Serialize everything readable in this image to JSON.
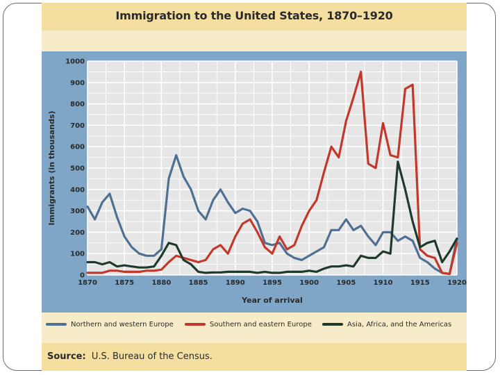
{
  "chart_data": {
    "type": "line",
    "title": "Immigration to the United States, 1870–1920",
    "xlabel": "Year of arrival",
    "ylabel": "Immigrants (in thousands)",
    "xlim": [
      1870,
      1920
    ],
    "ylim": [
      0,
      1000
    ],
    "x_ticks": [
      1870,
      1875,
      1880,
      1885,
      1890,
      1895,
      1900,
      1905,
      1910,
      1915,
      1920
    ],
    "y_ticks": [
      0,
      100,
      200,
      300,
      400,
      500,
      600,
      700,
      800,
      900,
      1000
    ],
    "grid": true,
    "legend_position": "bottom",
    "x": [
      1870,
      1871,
      1872,
      1873,
      1874,
      1875,
      1876,
      1877,
      1878,
      1879,
      1880,
      1881,
      1882,
      1883,
      1884,
      1885,
      1886,
      1887,
      1888,
      1889,
      1890,
      1891,
      1892,
      1893,
      1894,
      1895,
      1896,
      1897,
      1898,
      1899,
      1900,
      1901,
      1902,
      1903,
      1904,
      1905,
      1906,
      1907,
      1908,
      1909,
      1910,
      1911,
      1912,
      1913,
      1914,
      1915,
      1916,
      1917,
      1918,
      1919,
      1920
    ],
    "series": [
      {
        "name": "Northern and western Europe",
        "color": "#4f6f93",
        "values": [
          320,
          260,
          340,
          380,
          270,
          180,
          130,
          100,
          90,
          90,
          120,
          450,
          560,
          460,
          400,
          300,
          260,
          350,
          400,
          340,
          290,
          310,
          300,
          250,
          150,
          140,
          150,
          100,
          80,
          70,
          90,
          110,
          130,
          210,
          210,
          260,
          210,
          230,
          180,
          140,
          200,
          200,
          160,
          180,
          160,
          80,
          60,
          30,
          10,
          5,
          170
        ]
      },
      {
        "name": "Southern and eastern Europe",
        "color": "#c2382b",
        "values": [
          10,
          10,
          10,
          20,
          20,
          15,
          15,
          15,
          20,
          20,
          25,
          60,
          90,
          80,
          70,
          60,
          70,
          120,
          140,
          100,
          180,
          240,
          260,
          200,
          130,
          100,
          180,
          120,
          140,
          230,
          300,
          350,
          480,
          600,
          550,
          720,
          830,
          950,
          520,
          500,
          710,
          560,
          550,
          870,
          890,
          120,
          90,
          80,
          10,
          5,
          150
        ]
      },
      {
        "name": "Asia, Africa, and the Americas",
        "color": "#1f3a2a",
        "values": [
          60,
          60,
          50,
          60,
          40,
          45,
          40,
          35,
          35,
          40,
          90,
          150,
          140,
          70,
          50,
          15,
          10,
          12,
          12,
          15,
          15,
          15,
          15,
          10,
          15,
          10,
          10,
          15,
          15,
          15,
          20,
          15,
          30,
          40,
          40,
          45,
          40,
          90,
          80,
          80,
          110,
          100,
          530,
          400,
          250,
          130,
          150,
          160,
          60,
          110,
          170
        ]
      }
    ]
  },
  "source": {
    "label": "Source:",
    "text": "U.S. Bureau of the Census."
  }
}
